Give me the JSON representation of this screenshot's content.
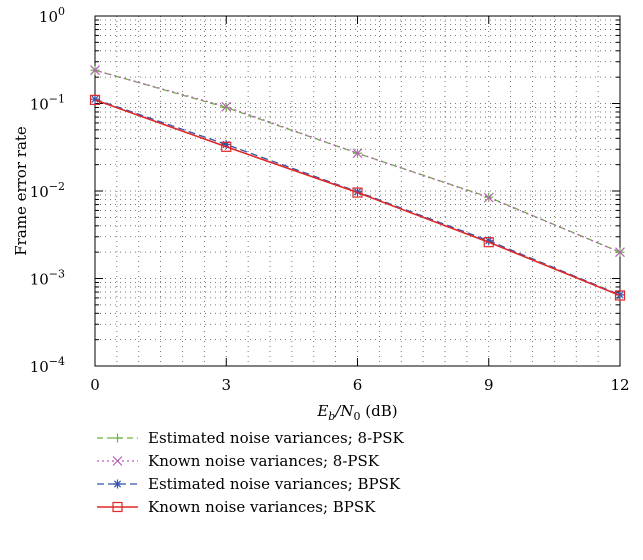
{
  "chart_data": {
    "type": "line",
    "xlabel_main": "E",
    "xlabel_sub_b": "b",
    "xlabel_slash": "/N",
    "xlabel_sub_0": "0",
    "xlabel_unit": " (dB)",
    "ylabel": "Frame error rate",
    "xlim": [
      0,
      12
    ],
    "ylim": [
      0.0001,
      1
    ],
    "yscale": "log",
    "grid": true,
    "legend_placement": "below",
    "x_ticks": [
      "0",
      "3",
      "6",
      "9",
      "12"
    ],
    "y_ticks": [
      {
        "base": "10",
        "exp": "0"
      },
      {
        "base": "10",
        "exp": "−1"
      },
      {
        "base": "10",
        "exp": "−2"
      },
      {
        "base": "10",
        "exp": "−3"
      },
      {
        "base": "10",
        "exp": "−4"
      }
    ],
    "series": [
      {
        "name": "Estimated noise variances; 8-PSK",
        "color": "#6db33f",
        "marker": "plus",
        "dash": "6,4",
        "x": [
          0,
          3,
          6,
          9,
          12
        ],
        "y": [
          0.24,
          0.09,
          0.027,
          0.0085,
          0.002
        ]
      },
      {
        "name": "Known noise variances; 8-PSK",
        "color": "#b45fb4",
        "marker": "x",
        "dash": "2,3",
        "x": [
          0,
          3,
          6,
          9,
          12
        ],
        "y": [
          0.24,
          0.092,
          0.027,
          0.0084,
          0.002
        ]
      },
      {
        "name": "Estimated noise variances; BPSK",
        "color": "#3355aa",
        "marker": "star",
        "dash": "7,4",
        "x": [
          0,
          3,
          6,
          9,
          12
        ],
        "y": [
          0.112,
          0.034,
          0.0098,
          0.0027,
          0.00065
        ]
      },
      {
        "name": "Known noise variances; BPSK",
        "color": "#e02828",
        "marker": "square",
        "dash": "",
        "x": [
          0,
          3,
          6,
          9,
          12
        ],
        "y": [
          0.11,
          0.032,
          0.0096,
          0.0026,
          0.00064
        ]
      }
    ]
  }
}
